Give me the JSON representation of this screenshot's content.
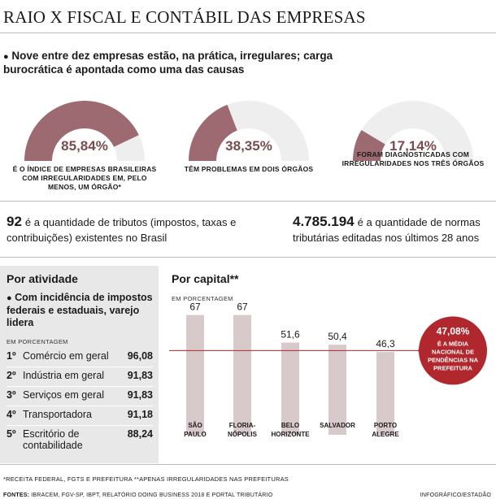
{
  "header": {
    "title": "RAIO X  FISCAL E CONTÁBIL DAS EMPRESAS"
  },
  "intro": {
    "bullet": "●",
    "text": "Nove entre dez empresas estão, na prática, irregulares; carga burocrática é apontada como uma das causas"
  },
  "gauges": [
    {
      "value_label": "85,84%",
      "value": 85.84,
      "caption": "É O ÍNDICE DE EMPRESAS BRASILEIRAS COM IRREGULARIDADES EM, PELO MENOS, UM ÓRGÃO*"
    },
    {
      "value_label": "38,35%",
      "value": 38.35,
      "caption": "TÊM PROBLEMAS EM DOIS ÓRGÃOS"
    },
    {
      "value_label": "17,14%",
      "value": 17.14,
      "caption": "FORAM DIAGNOSTICADAS COM IRREGULARIDADES NOS TRÊS ÓRGÃOS"
    }
  ],
  "stats": [
    {
      "big": "92",
      "text": "é a quantidade de tributos (impostos, taxas e contribuições) existentes no Brasil"
    },
    {
      "big": "4.785.194",
      "text": "é a quantidade de normas tributárias editadas nos últimos 28 anos"
    }
  ],
  "by_activity": {
    "title": "Por atividade",
    "bullet": "●",
    "subtitle": "Com incidência de impostos federais e estaduais, varejo lidera",
    "unit_label": "EM PORCENTAGEM",
    "rows": [
      {
        "rank": "1º",
        "name": "Comércio em geral",
        "value": "96,08"
      },
      {
        "rank": "2º",
        "name": "Indústria em geral",
        "value": "91,83"
      },
      {
        "rank": "3º",
        "name": "Serviços em geral",
        "value": "91,83"
      },
      {
        "rank": "4º",
        "name": "Transportadora",
        "value": "91,18"
      },
      {
        "rank": "5º",
        "name": "Escritório de contabilidade",
        "value": "88,24"
      }
    ]
  },
  "by_capital": {
    "title": "Por capital**",
    "unit_label": "EM PORCENTAGEM"
  },
  "chart_data": {
    "type": "bar",
    "title": "Por capital**",
    "ylabel": "EM PORCENTAGEM",
    "ylim": [
      0,
      75
    ],
    "categories": [
      [
        "SÃO",
        "PAULO"
      ],
      [
        "FLORIA-",
        "NÓPOLIS"
      ],
      [
        "BELO",
        "HORIZONTE"
      ],
      [
        "SALVADOR"
      ],
      [
        "PORTO",
        "ALEGRE"
      ]
    ],
    "values": [
      67,
      67,
      51.6,
      50.4,
      46.3
    ],
    "value_labels": [
      "67",
      "67",
      "51,6",
      "50,4",
      "46,3"
    ],
    "reference_line": {
      "value": 47.08,
      "label": "47,08%",
      "caption": [
        "É A MÉDIA",
        "NACIONAL DE",
        "PENDÊNCIAS NA",
        "PREFEITURA"
      ]
    },
    "grid": false,
    "legend": "none"
  },
  "footnotes": {
    "note": "*RECEITA FEDERAL, FGTS E PREFEITURA   **APENAS IRREGULARIDADES NAS PREFEITURAS",
    "sources_label": "FONTES:",
    "sources": "IBRACEM, FGV-SP, IBPT, RELATÓRIO DOING BUSINESS 2018 E PORTAL TRIBUTÁRIO",
    "credit": "INFOGRÁFICO/ESTADÃO"
  },
  "colors": {
    "accent": "#9c6a70",
    "accent_dark": "#7b4b4f",
    "track": "#eeeeee",
    "bar": "#d8c9ca",
    "reference": "#b0272d",
    "panel": "#e8e8e8"
  }
}
